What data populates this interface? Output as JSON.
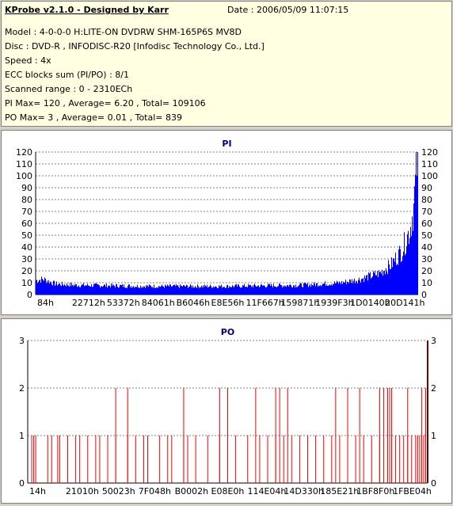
{
  "header": {
    "title": "KProbe v2.1.0 - Designed by Karr",
    "date": "Date : 2006/05/09 11:07:15",
    "lines": [
      "Model : 4-0-0-0 H:LITE-ON DVDRW SHM-165P6S MV8D",
      "Disc : DVD-R , INFODISC-R20 [Infodisc Technology Co., Ltd.]",
      "Speed : 4x",
      "ECC blocks sum (PI/PO) : 8/1",
      "Scanned range : 0 - 2310ECh",
      "PI Max= 120 , Average= 6.20 , Total= 109106",
      "PO Max= 3 , Average= 0.01 , Total= 839"
    ]
  },
  "chart_data": [
    {
      "type": "bar",
      "title": "PI",
      "color": "#0000ff",
      "ylim": [
        0,
        120
      ],
      "yticks": [
        0,
        10,
        20,
        30,
        40,
        50,
        60,
        70,
        80,
        90,
        100,
        110,
        120
      ],
      "xticks": [
        "84h",
        "22712h",
        "53372h",
        "84061h",
        "B6046h",
        "E8E56h",
        "11F667h",
        "159871h",
        "1939F3h",
        "1D0140h",
        "20D141h"
      ],
      "profile_x": [
        0,
        0.02,
        0.05,
        0.1,
        0.2,
        0.3,
        0.4,
        0.5,
        0.6,
        0.7,
        0.75,
        0.8,
        0.85,
        0.9,
        0.93,
        0.96,
        0.98,
        0.99,
        1.0
      ],
      "profile_y": [
        12,
        13,
        9,
        8,
        7.5,
        7,
        7,
        7,
        7.5,
        8,
        9,
        10,
        13,
        18,
        25,
        38,
        55,
        75,
        120
      ]
    },
    {
      "type": "bar",
      "title": "PO",
      "color": "#ff0000",
      "ylim": [
        0,
        3
      ],
      "yticks": [
        0,
        1,
        2,
        3
      ],
      "xticks": [
        "14h",
        "21010h",
        "50023h",
        "7F048h",
        "B0002h",
        "E08E0h",
        "114E04h",
        "14D330h",
        "185E21h",
        "1BF8F0h",
        "1FBE04h"
      ],
      "ones": [
        0.01,
        0.015,
        0.02,
        0.05,
        0.06,
        0.075,
        0.08,
        0.1,
        0.12,
        0.13,
        0.15,
        0.17,
        0.18,
        0.2,
        0.22,
        0.25,
        0.27,
        0.29,
        0.3,
        0.33,
        0.35,
        0.36,
        0.39,
        0.4,
        0.42,
        0.45,
        0.48,
        0.5,
        0.52,
        0.55,
        0.58,
        0.6,
        0.62,
        0.64,
        0.66,
        0.68,
        0.7,
        0.72,
        0.74,
        0.76,
        0.78,
        0.8,
        0.82,
        0.84,
        0.86,
        0.88,
        0.9,
        0.91,
        0.92,
        0.93,
        0.94,
        0.95,
        0.96,
        0.97,
        0.975,
        0.98,
        0.985,
        0.99,
        0.995
      ],
      "twos": [
        0.22,
        0.25,
        0.39,
        0.48,
        0.5,
        0.57,
        0.62,
        0.63,
        0.65,
        0.77,
        0.8,
        0.83,
        0.88,
        0.89,
        0.9,
        0.905,
        0.91,
        0.95,
        0.985,
        0.995
      ]
    }
  ]
}
